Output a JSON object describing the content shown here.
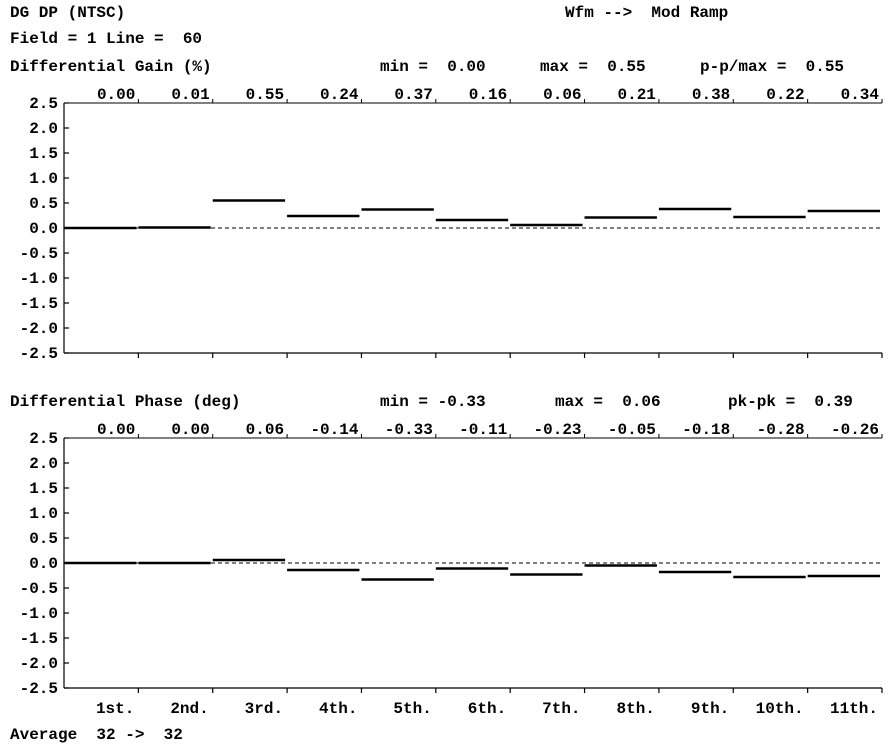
{
  "header": {
    "title": "DG DP (NTSC)",
    "waveform": "Wfm -->  Mod Ramp",
    "field_line": "Field = 1 Line =  60"
  },
  "footer": {
    "average": "Average  32 ->  32"
  },
  "chart_data": [
    {
      "type": "step",
      "title": "Differential Gain (%)",
      "stats": {
        "min": "min =  0.00",
        "max": "max =  0.55",
        "pp": "p-p/max =  0.55"
      },
      "categories": [
        "1st.",
        "2nd.",
        "3rd.",
        "4th.",
        "5th.",
        "6th.",
        "7th.",
        "8th.",
        "9th.",
        "10th.",
        "11th."
      ],
      "values": [
        0.0,
        0.01,
        0.55,
        0.24,
        0.37,
        0.16,
        0.06,
        0.21,
        0.38,
        0.22,
        0.34
      ],
      "value_labels": [
        "0.00",
        "0.01",
        "0.55",
        "0.24",
        "0.37",
        "0.16",
        "0.06",
        "0.21",
        "0.38",
        "0.22",
        "0.34"
      ],
      "yticks": [
        "2.5",
        "2.0",
        "1.5",
        "1.0",
        "0.5",
        "0.0",
        "-0.5",
        "-1.0",
        "-1.5",
        "-2.0",
        "-2.5"
      ],
      "ylim": [
        -2.5,
        2.5
      ],
      "zero_line": "dashed"
    },
    {
      "type": "step",
      "title": "Differential Phase (deg)",
      "stats": {
        "min": "min = -0.33",
        "max": "max =  0.06",
        "pp": "pk-pk =  0.39"
      },
      "categories": [
        "1st.",
        "2nd.",
        "3rd.",
        "4th.",
        "5th.",
        "6th.",
        "7th.",
        "8th.",
        "9th.",
        "10th.",
        "11th."
      ],
      "values": [
        0.0,
        0.0,
        0.06,
        -0.14,
        -0.33,
        -0.11,
        -0.23,
        -0.05,
        -0.18,
        -0.28,
        -0.26
      ],
      "value_labels": [
        "0.00",
        "0.00",
        "0.06",
        "-0.14",
        "-0.33",
        "-0.11",
        "-0.23",
        "-0.05",
        "-0.18",
        "-0.28",
        "-0.26"
      ],
      "yticks": [
        "2.5",
        "2.0",
        "1.5",
        "1.0",
        "0.5",
        "0.0",
        "-0.5",
        "-1.0",
        "-1.5",
        "-2.0",
        "-2.5"
      ],
      "ylim": [
        -2.5,
        2.5
      ],
      "zero_line": "dashed"
    }
  ]
}
